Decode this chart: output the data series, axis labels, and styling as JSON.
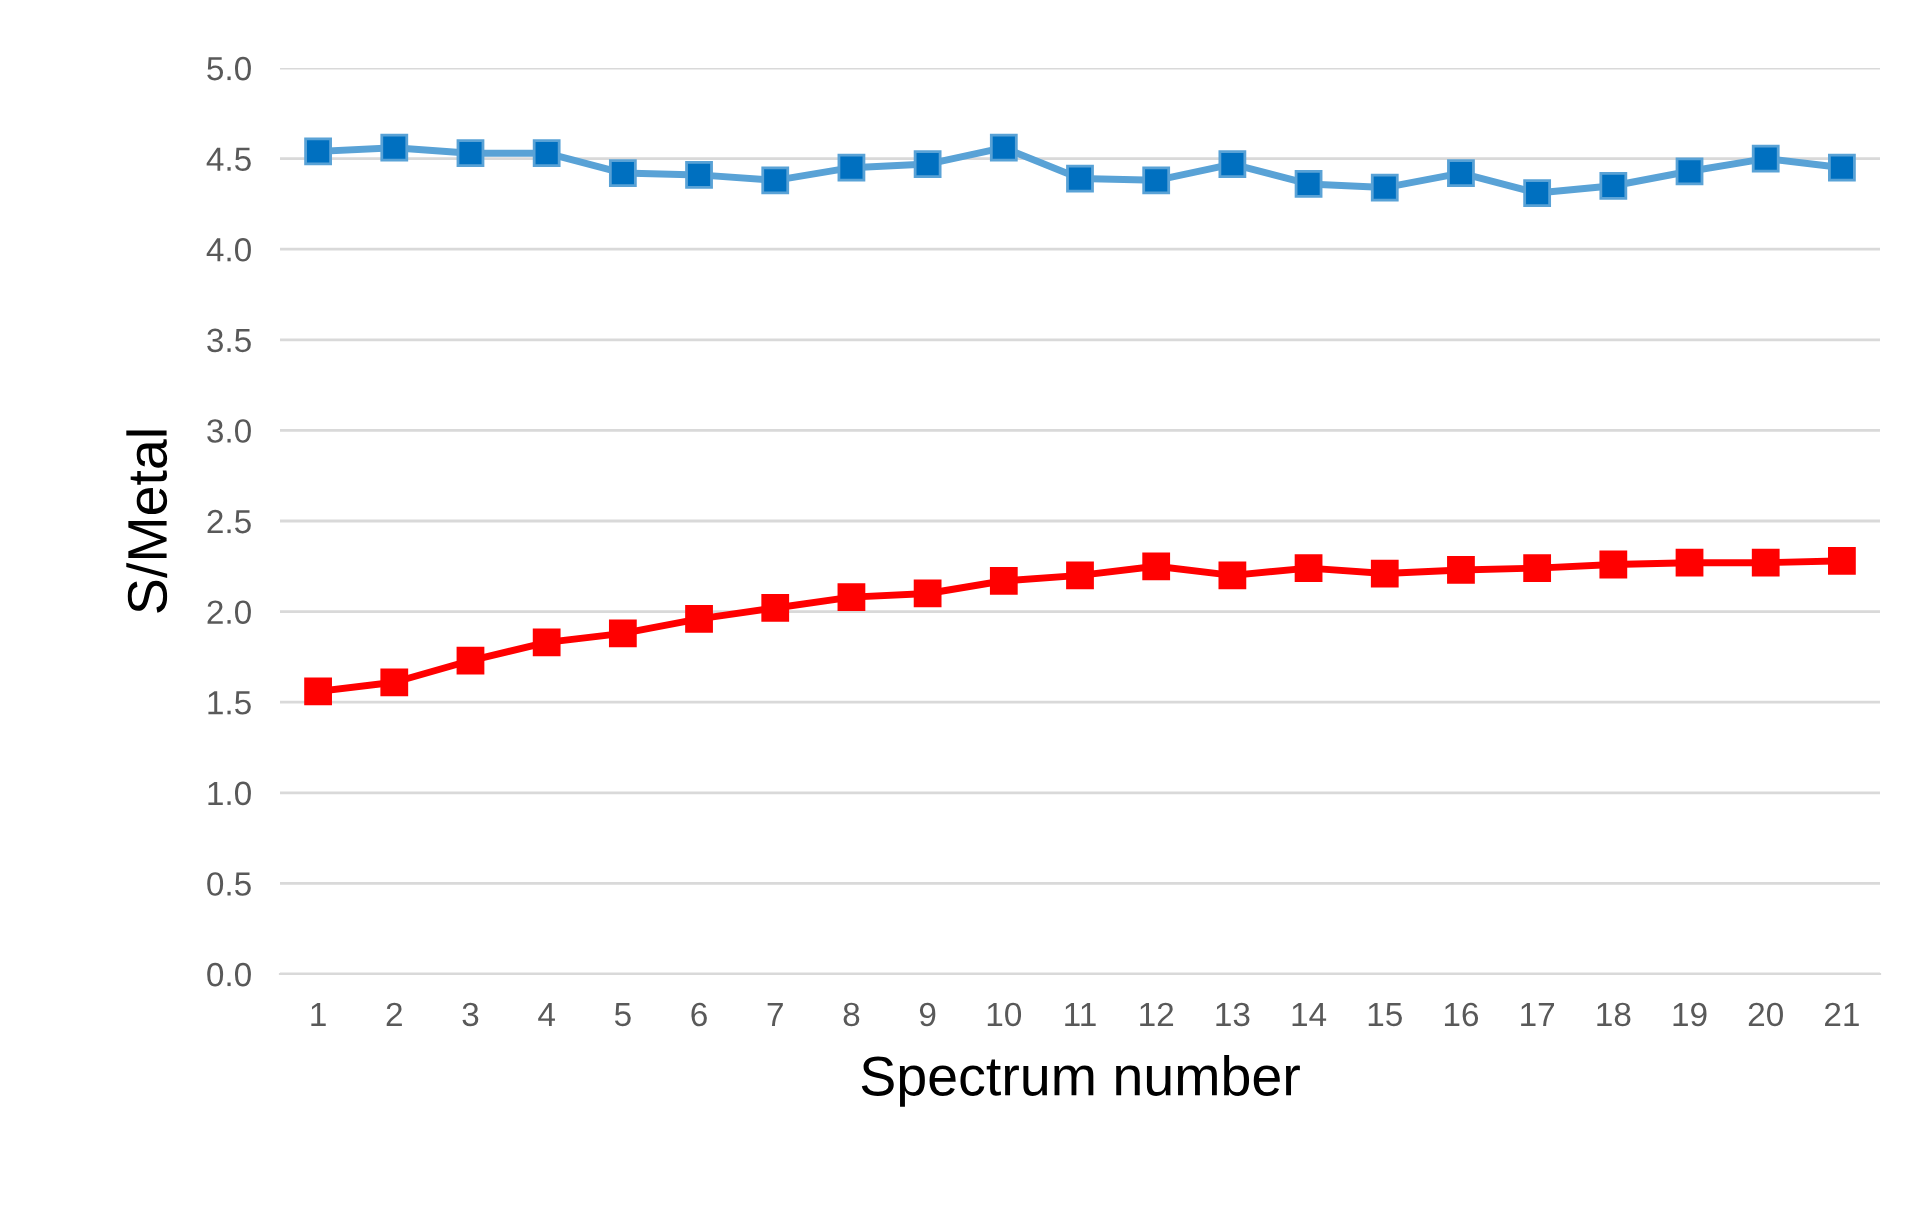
{
  "chart_data": {
    "type": "line",
    "xlabel": "Spectrum number",
    "ylabel": "S/Metal",
    "categories": [
      "1",
      "2",
      "3",
      "4",
      "5",
      "6",
      "7",
      "8",
      "9",
      "10",
      "11",
      "12",
      "13",
      "14",
      "15",
      "16",
      "17",
      "18",
      "19",
      "20",
      "21"
    ],
    "series": [
      {
        "color": "#0070c0",
        "values": [
          4.54,
          4.56,
          4.53,
          4.53,
          4.42,
          4.41,
          4.38,
          4.45,
          4.47,
          4.56,
          4.39,
          4.38,
          4.47,
          4.36,
          4.34,
          4.42,
          4.31,
          4.35,
          4.43,
          4.5,
          4.45
        ]
      },
      {
        "color": "#ff0000",
        "values": [
          1.56,
          1.61,
          1.73,
          1.83,
          1.88,
          1.96,
          2.02,
          2.08,
          2.1,
          2.17,
          2.2,
          2.25,
          2.2,
          2.24,
          2.21,
          2.23,
          2.24,
          2.26,
          2.27,
          2.27,
          2.28
        ]
      }
    ],
    "ylim": [
      0,
      5
    ],
    "yticks": [
      {
        "value": 0,
        "label": "0.0"
      },
      {
        "value": 0.5,
        "label": "0.5"
      },
      {
        "value": 1,
        "label": "1.0"
      },
      {
        "value": 1.5,
        "label": "1.5"
      },
      {
        "value": 2,
        "label": "2.0"
      },
      {
        "value": 2.5,
        "label": "2.5"
      },
      {
        "value": 3,
        "label": "3.0"
      },
      {
        "value": 3.5,
        "label": "3.5"
      },
      {
        "value": 4,
        "label": "4.0"
      },
      {
        "value": 4.5,
        "label": "4.5"
      },
      {
        "value": 5,
        "label": "5.0"
      }
    ],
    "grid": "y",
    "marker": "square",
    "line_style": "solid"
  }
}
